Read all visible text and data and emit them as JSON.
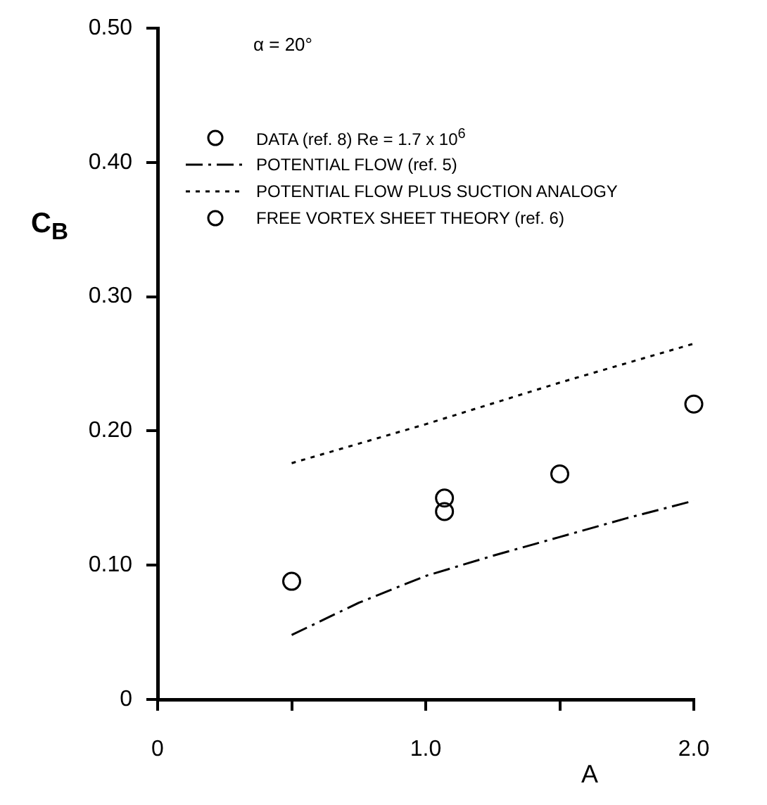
{
  "chart_data": {
    "type": "scatter",
    "xlabel": "A",
    "ylabel": "C$_{B}$",
    "annotations": [
      "α = 20°"
    ],
    "xlim": [
      0,
      2.0
    ],
    "xticks": [
      0,
      {
        "value": 0.5,
        "label": null
      },
      {
        "value": 1.0,
        "label": "1.0"
      },
      {
        "value": 1.5,
        "label": null
      },
      {
        "value": 2.0,
        "label": "2.0"
      }
    ],
    "ylim": [
      0,
      0.5
    ],
    "yticks": [
      0,
      {
        "value": 0.1,
        "label": "0.10"
      },
      {
        "value": 0.2,
        "label": "0.20"
      },
      {
        "value": 0.3,
        "label": "0.30"
      },
      {
        "value": 0.4,
        "label": "0.40"
      },
      {
        "value": 0.5,
        "label": "0.50"
      }
    ],
    "grid": false,
    "legend": "top left",
    "series": [
      {
        "name": "DATA (ref. 8)  Re = 1.7 x 10$^{6}$",
        "marker": "circle",
        "color": "#000000",
        "x": [
          1.07
        ],
        "values": [
          0.15
        ]
      },
      {
        "name": "POTENTIAL FLOW (ref. 5)",
        "type": "line",
        "line_style": "dashed",
        "marker": "none",
        "color": "#000000",
        "x": [
          0.5,
          0.75,
          1.0,
          1.25,
          1.5,
          1.75,
          2.0
        ],
        "values": [
          0.048,
          0.072,
          0.092,
          0.107,
          0.121,
          0.135,
          0.148
        ]
      },
      {
        "name": "POTENTIAL FLOW PLUS SUCTION ANALOGY",
        "type": "line",
        "line_style": "dotted",
        "marker": "none",
        "color": "#000000",
        "x": [
          0.5,
          1.0,
          1.5,
          2.0
        ],
        "values": [
          0.176,
          0.205,
          0.236,
          0.265
        ]
      },
      {
        "name": "FREE VORTEX SHEET THEORY (ref. 6)",
        "marker": "circle",
        "color": "#000000",
        "x": [
          0.5,
          1.07,
          1.5,
          2.0
        ],
        "values": [
          0.088,
          0.14,
          0.168,
          0.22
        ]
      }
    ]
  }
}
